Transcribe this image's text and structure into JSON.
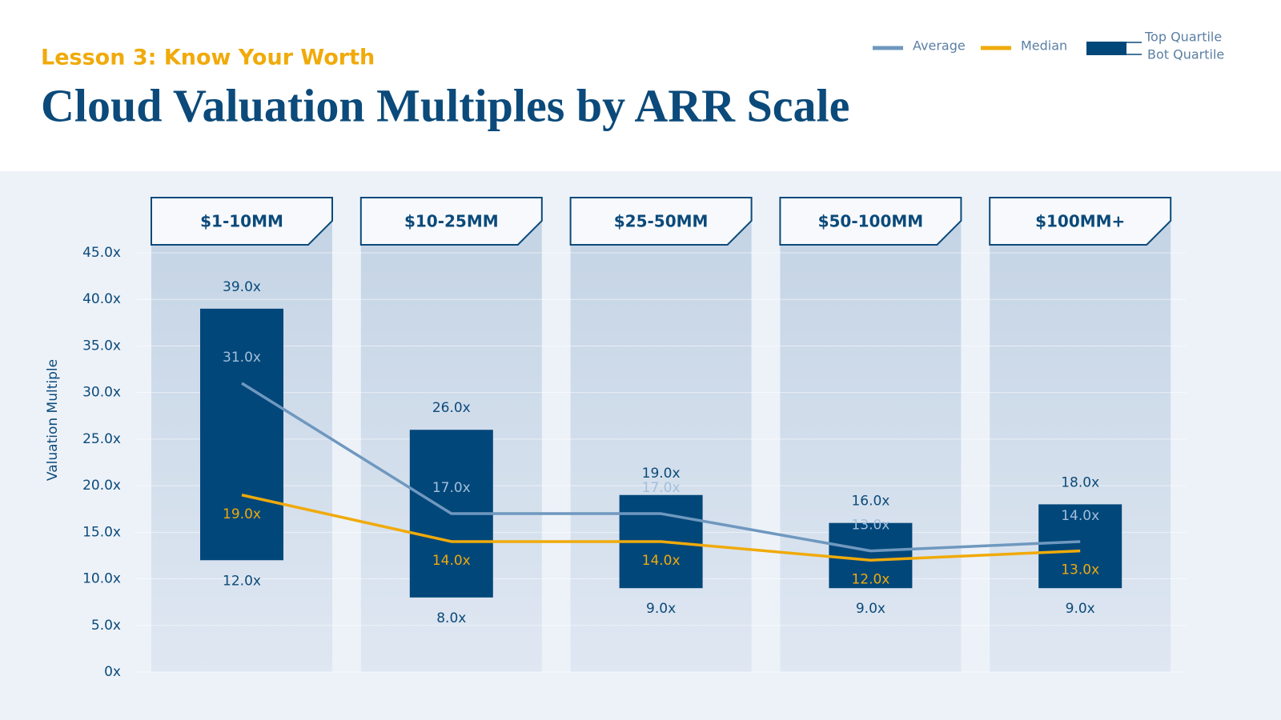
{
  "chart_data": {
    "type": "range-bar",
    "subtitle": "Lesson 3: Know Your Worth",
    "title": "Cloud Valuation Multiples by ARR Scale",
    "ylabel": "Valuation Multiple",
    "categories": [
      "$1-10MM",
      "$10-25MM",
      "$25-50MM",
      "$50-100MM",
      "$100MM+"
    ],
    "series": [
      {
        "name": "Top Quartile",
        "color": "#02477a",
        "values": [
          39,
          26,
          19,
          16,
          18
        ],
        "value_labels": [
          "39.0x",
          "26.0x",
          "19.0x",
          "16.0x",
          "18.0x"
        ]
      },
      {
        "name": "Bot Quartile",
        "color": "#02477a",
        "values": [
          12,
          8,
          9,
          9,
          9
        ],
        "value_labels": [
          "12.0x",
          "8.0x",
          "9.0x",
          "9.0x",
          "9.0x"
        ]
      },
      {
        "name": "Average",
        "type": "line",
        "color": "#6f98bf",
        "values": [
          31,
          17,
          17,
          13,
          14
        ],
        "value_labels": [
          "31.0x",
          "17.0x",
          "17.0x",
          "13.0x",
          "14.0x"
        ]
      },
      {
        "name": "Median",
        "type": "line",
        "color": "#f0aa0a",
        "values": [
          19,
          14,
          14,
          12,
          13
        ],
        "value_labels": [
          "19.0x",
          "14.0x",
          "14.0x",
          "12.0x",
          "13.0x"
        ]
      }
    ],
    "ylim": [
      0,
      45
    ],
    "yticks": [
      {
        "value": 0,
        "label": "0x"
      },
      {
        "value": 5,
        "label": "5.0x"
      },
      {
        "value": 10,
        "label": "10.0x"
      },
      {
        "value": 15,
        "label": "15.0x"
      },
      {
        "value": 20,
        "label": "20.0x"
      },
      {
        "value": 25,
        "label": "25.0x"
      },
      {
        "value": 30,
        "label": "30.0x"
      },
      {
        "value": 35,
        "label": "35.0x"
      },
      {
        "value": 40,
        "label": "40.0x"
      },
      {
        "value": 45,
        "label": "45.0x"
      }
    ],
    "grid": true,
    "legend": "top-right"
  }
}
